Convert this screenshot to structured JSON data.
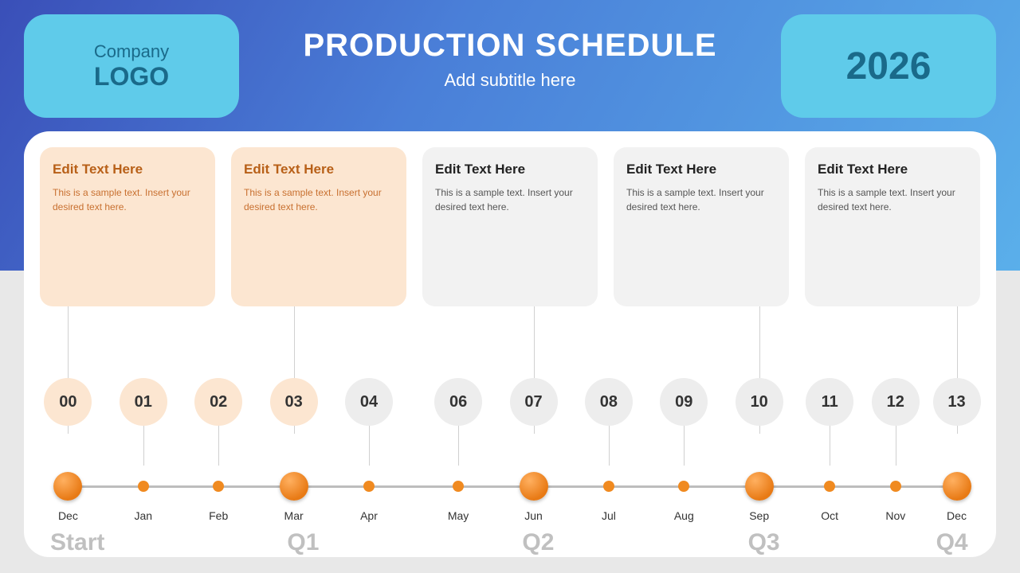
{
  "header": {
    "logo_line1": "Company",
    "logo_line2": "LOGO",
    "title": "PRODUCTION SCHEDULE",
    "subtitle": "Add subtitle here",
    "year": "2026"
  },
  "colors": {
    "header_gradient_start": "#3a4fb8",
    "header_gradient_end": "#5aafea",
    "badge_bg": "#5fcbea",
    "badge_text": "#1a6a8a",
    "panel_bg": "#ffffff",
    "page_bg": "#e8e8e8",
    "peach_bg": "#fce6d1",
    "peach_title": "#b86018",
    "peach_body": "#c87030",
    "grey_bg": "#f2f2f2",
    "dot_color": "#f08a20",
    "line_color": "#bdbdbd",
    "quarter_color": "#c0c0c0"
  },
  "cards": [
    {
      "title": "Edit Text Here",
      "body": "This is a sample text. Insert your desired text here.",
      "variant": "peach"
    },
    {
      "title": "Edit Text Here",
      "body": "This is a sample text. Insert your desired text here.",
      "variant": "peach"
    },
    {
      "title": "Edit Text Here",
      "body": "This is a sample text. Insert your desired text here.",
      "variant": "grey"
    },
    {
      "title": "Edit Text Here",
      "body": "This is a sample text. Insert your desired text here.",
      "variant": "grey"
    },
    {
      "title": "Edit Text Here",
      "body": "This is a sample text. Insert your desired text here.",
      "variant": "grey"
    }
  ],
  "timeline": {
    "points": [
      {
        "num": "00",
        "month": "Dec",
        "x_pct": 3,
        "bubble": "peach",
        "dot": "big",
        "connector": "long"
      },
      {
        "num": "01",
        "month": "Jan",
        "x_pct": 11,
        "bubble": "peach",
        "dot": "small",
        "connector": "short"
      },
      {
        "num": "02",
        "month": "Feb",
        "x_pct": 19,
        "bubble": "peach",
        "dot": "small",
        "connector": "short"
      },
      {
        "num": "03",
        "month": "Mar",
        "x_pct": 27,
        "bubble": "peach",
        "dot": "big",
        "connector": "long"
      },
      {
        "num": "04",
        "month": "Apr",
        "x_pct": 35,
        "bubble": "grey",
        "dot": "small",
        "connector": "short"
      },
      {
        "num": "06",
        "month": "May",
        "x_pct": 44.5,
        "bubble": "grey",
        "dot": "small",
        "connector": "short"
      },
      {
        "num": "07",
        "month": "Jun",
        "x_pct": 52.5,
        "bubble": "grey",
        "dot": "big",
        "connector": "long"
      },
      {
        "num": "08",
        "month": "Jul",
        "x_pct": 60.5,
        "bubble": "grey",
        "dot": "small",
        "connector": "short"
      },
      {
        "num": "09",
        "month": "Aug",
        "x_pct": 68.5,
        "bubble": "grey",
        "dot": "small",
        "connector": "short"
      },
      {
        "num": "10",
        "month": "Sep",
        "x_pct": 76.5,
        "bubble": "grey",
        "dot": "big",
        "connector": "long"
      },
      {
        "num": "11",
        "month": "Oct",
        "x_pct": 84,
        "bubble": "grey",
        "dot": "small",
        "connector": "short"
      },
      {
        "num": "12",
        "month": "Nov",
        "x_pct": 91,
        "bubble": "grey",
        "dot": "small",
        "connector": "short"
      },
      {
        "num": "13",
        "month": "Dec",
        "x_pct": 97.5,
        "bubble": "grey",
        "dot": "big",
        "connector": "long"
      }
    ],
    "quarters": [
      {
        "label": "Start",
        "x_pct": 4
      },
      {
        "label": "Q1",
        "x_pct": 28
      },
      {
        "label": "Q2",
        "x_pct": 53
      },
      {
        "label": "Q3",
        "x_pct": 77
      },
      {
        "label": "Q4",
        "x_pct": 97
      }
    ]
  }
}
